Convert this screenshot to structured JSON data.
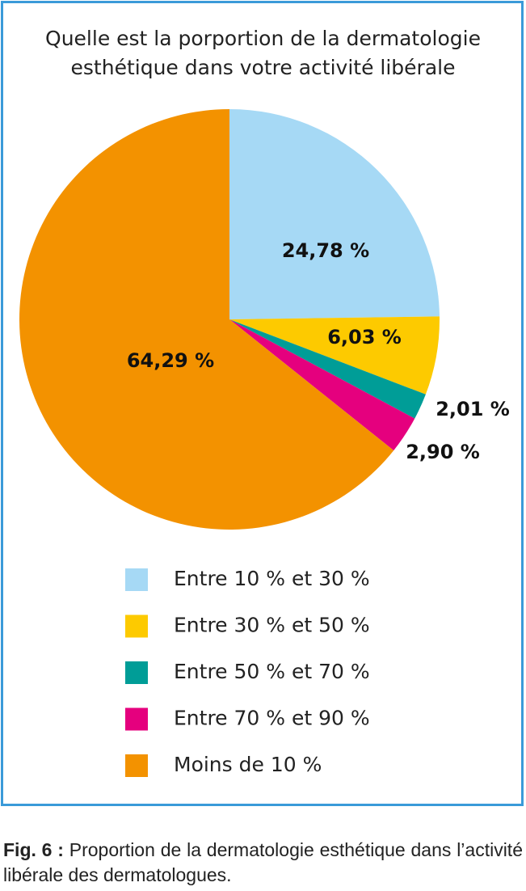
{
  "chart_data": {
    "type": "pie",
    "title": "Quelle est la porportion de la dermatologie esthétique dans votre activité libérale",
    "categories": [
      "Entre 10 % et 30 %",
      "Entre 30 % et 50 %",
      "Entre 50 % et 70 %",
      "Entre 70 % et 90 %",
      "Moins de 10 %"
    ],
    "values": [
      24.78,
      6.03,
      2.01,
      2.9,
      64.29
    ],
    "value_labels": [
      "24,78 %",
      "6,03 %",
      "2,01 %",
      "2,90 %",
      "64,29 %"
    ],
    "colors": [
      "#a6d9f5",
      "#fdca00",
      "#009d97",
      "#e5007e",
      "#f39200"
    ]
  },
  "caption": {
    "label": "Fig. 6 :",
    "text": "Proportion de la dermatologie esthétique dans l’activité libérale des dermatologues."
  }
}
